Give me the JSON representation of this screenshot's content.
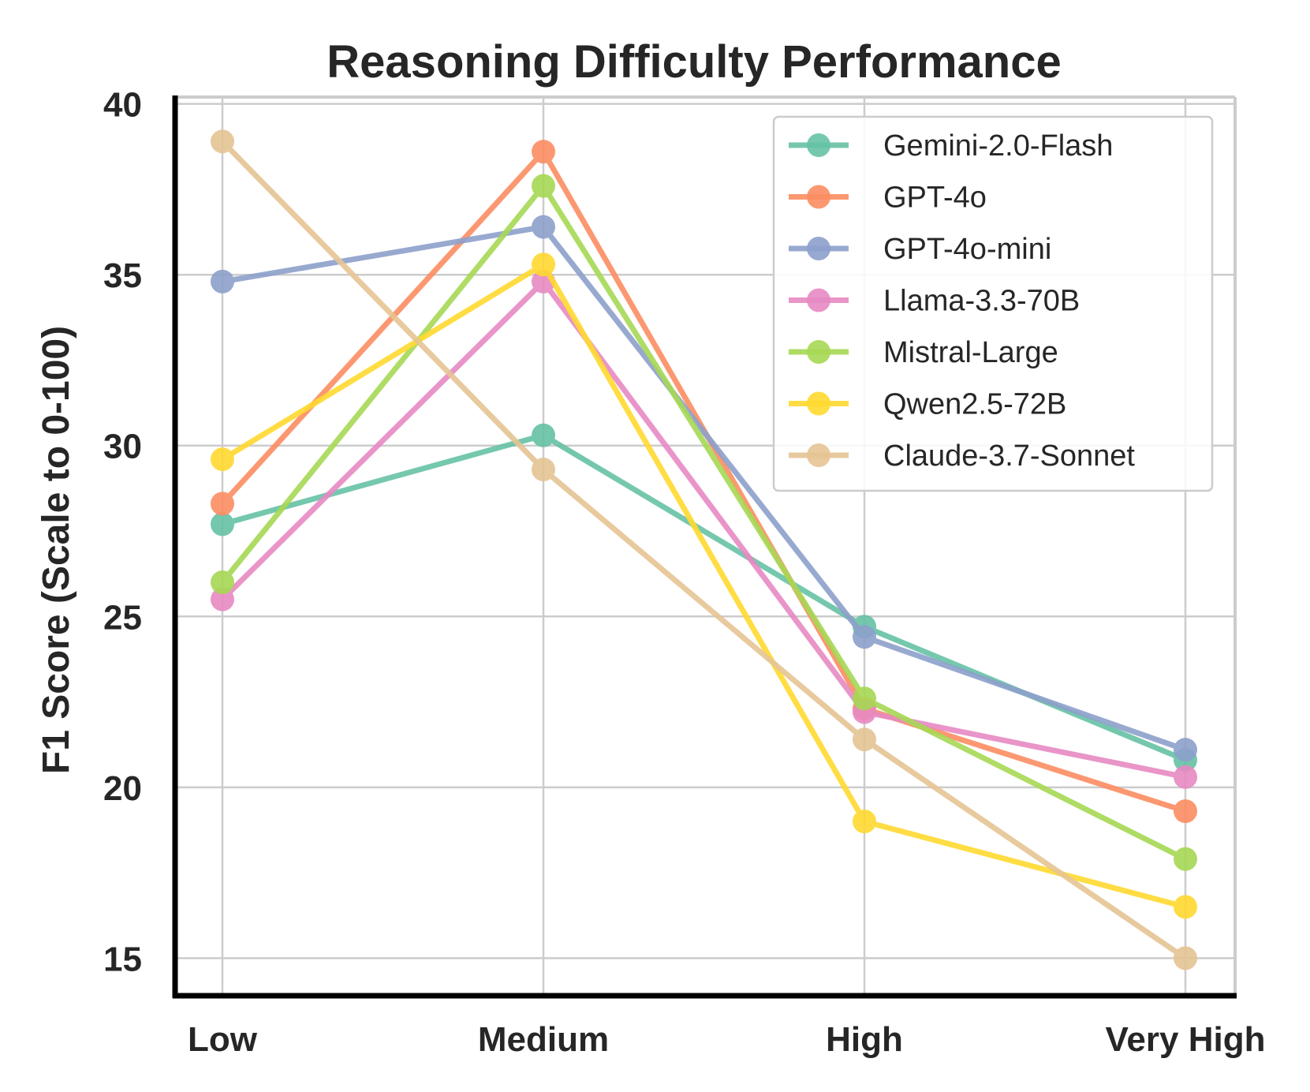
{
  "chart_data": {
    "type": "line",
    "title": "Reasoning Difficulty Performance",
    "xlabel": "",
    "ylabel": "F1 Score (Scale to 0-100)",
    "categories": [
      "Low",
      "Medium",
      "High",
      "Very High"
    ],
    "yticks": [
      15,
      20,
      25,
      30,
      35,
      40
    ],
    "ylim": [
      13.9,
      40.2
    ],
    "grid": true,
    "legend_position": "top-right",
    "series": [
      {
        "name": "Gemini-2.0-Flash",
        "color": "#66c2a5",
        "values": [
          27.7,
          30.3,
          24.7,
          20.8
        ]
      },
      {
        "name": "GPT-4o",
        "color": "#fc8d62",
        "values": [
          28.3,
          38.6,
          22.3,
          19.3
        ]
      },
      {
        "name": "GPT-4o-mini",
        "color": "#8da0cb",
        "values": [
          34.8,
          36.4,
          24.4,
          21.1
        ]
      },
      {
        "name": "Llama-3.3-70B",
        "color": "#e78ac3",
        "values": [
          25.5,
          34.8,
          22.2,
          20.3
        ]
      },
      {
        "name": "Mistral-Large",
        "color": "#a6d854",
        "values": [
          26.0,
          37.6,
          22.6,
          17.9
        ]
      },
      {
        "name": "Qwen2.5-72B",
        "color": "#ffd92f",
        "values": [
          29.6,
          35.3,
          19.0,
          16.5
        ]
      },
      {
        "name": "Claude-3.7-Sonnet",
        "color": "#e5c494",
        "values": [
          38.9,
          29.3,
          21.4,
          15.0
        ]
      }
    ]
  }
}
